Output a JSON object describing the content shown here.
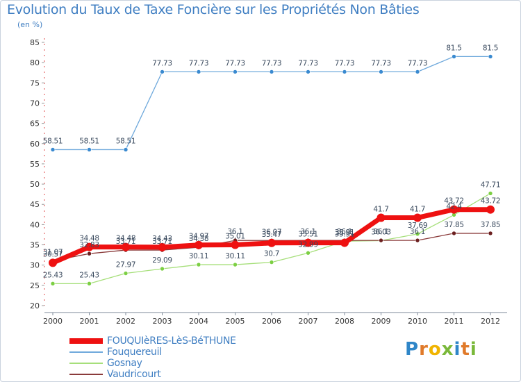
{
  "header": {
    "title": "Evolution du Taux de Taxe Foncière sur les Propriétés Non Bâties",
    "unit": "(en %)"
  },
  "logo": {
    "letters": [
      "P",
      "r",
      "o",
      "x",
      "i",
      "t",
      "i"
    ],
    "colors": [
      "#2f86c8",
      "#e07a2a",
      "#f0b400",
      "#7ab83a",
      "#2f86c8",
      "#e07a2a",
      "#7ab83a"
    ]
  },
  "chart_data": {
    "type": "line",
    "title": "Evolution du Taux de Taxe Foncière sur les Propriétés Non Bâties",
    "ylabel": "(en %)",
    "xlabel": "",
    "ylim": [
      20,
      85
    ],
    "yticks": [
      20,
      25,
      30,
      35,
      40,
      45,
      50,
      55,
      60,
      65,
      70,
      75,
      80,
      85
    ],
    "grid": false,
    "legend_position": "bottom-left",
    "x": [
      "2000",
      "2001",
      "2002",
      "2003",
      "2004",
      "2005",
      "2006",
      "2007",
      "2008",
      "2009",
      "2010",
      "2011",
      "2012"
    ],
    "series": [
      {
        "name": "FOUQUIèRES-LèS-BéTHUNE",
        "color": "#ee1111",
        "marker_color": "#ee1111",
        "values": [
          30.57,
          34.48,
          34.48,
          34.43,
          34.97,
          35.01,
          35.47,
          35.51,
          35.51,
          41.7,
          41.7,
          43.72,
          43.72
        ],
        "labels": [
          "30.57",
          "34.48",
          "34.48",
          "34.43",
          "34.97",
          "35.01",
          "35.47",
          "35.51",
          "35.51",
          "41.7",
          "41.7",
          "43.72",
          "43.72"
        ]
      },
      {
        "name": "Fouquereuil",
        "color": "#6fa9dc",
        "marker_color": "#3a8ad0",
        "values": [
          58.51,
          58.51,
          58.51,
          77.73,
          77.73,
          77.73,
          77.73,
          77.73,
          77.73,
          77.73,
          77.73,
          81.5,
          81.5
        ],
        "labels": [
          "58.51",
          "58.51",
          "58.51",
          "77.73",
          "77.73",
          "77.73",
          "77.73",
          "77.73",
          "77.73",
          "77.73",
          "77.73",
          "81.5",
          "81.5"
        ]
      },
      {
        "name": "Gosnay",
        "color": "#a6df7a",
        "marker_color": "#7ccf43",
        "values": [
          25.43,
          25.43,
          27.97,
          29.09,
          30.11,
          30.11,
          30.7,
          32.99,
          35.91,
          36.03,
          37.69,
          42.4,
          47.71
        ],
        "labels": [
          "25.43",
          "25.43",
          "27.97",
          "29.09",
          "30.11",
          "30.11",
          "30.7",
          "32.99",
          "35.91",
          "36.03",
          "37.69",
          "42.4",
          "47.71"
        ]
      },
      {
        "name": "Vaudricourt",
        "color": "#8a3a3a",
        "marker_color": "#6b1f1f",
        "values": [
          31.07,
          32.83,
          33.71,
          33.71,
          34.38,
          36.1,
          36.07,
          36.1,
          36.1,
          36.1,
          36.1,
          37.85,
          37.85
        ],
        "labels": [
          "31.07",
          "32.83",
          "33.71",
          "33.71",
          "34.38",
          "36.1",
          "36.07",
          "36.1",
          "36.1",
          "36.1",
          "36.1",
          "37.85",
          "37.85"
        ]
      }
    ]
  }
}
